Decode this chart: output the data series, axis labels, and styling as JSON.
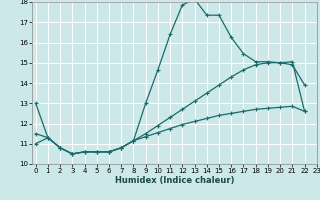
{
  "xlabel": "Humidex (Indice chaleur)",
  "background_color": "#cce8e8",
  "grid_color": "#ffffff",
  "line_color": "#1a6b6b",
  "x_min": 0,
  "x_max": 23,
  "y_min": 10,
  "y_max": 18,
  "series": [
    {
      "x": [
        0,
        1,
        2,
        3,
        4,
        5,
        6,
        7,
        8,
        9,
        10,
        11,
        12,
        13,
        14,
        15,
        16,
        17,
        18,
        19,
        20,
        21,
        22
      ],
      "y": [
        13.0,
        11.3,
        10.8,
        10.5,
        10.6,
        10.6,
        10.6,
        10.8,
        11.15,
        13.0,
        14.65,
        16.4,
        17.85,
        18.15,
        17.35,
        17.35,
        16.25,
        15.45,
        15.05,
        15.05,
        15.0,
        14.9,
        13.9
      ]
    },
    {
      "x": [
        0,
        1,
        2,
        3,
        4,
        5,
        6,
        7,
        8,
        9,
        10,
        11,
        12,
        13,
        14,
        15,
        16,
        17,
        18,
        19,
        20,
        21,
        22
      ],
      "y": [
        11.5,
        11.3,
        10.8,
        10.5,
        10.6,
        10.6,
        10.6,
        10.8,
        11.15,
        11.5,
        11.9,
        12.3,
        12.7,
        13.1,
        13.5,
        13.9,
        14.3,
        14.65,
        14.9,
        15.0,
        15.0,
        15.05,
        12.6
      ]
    },
    {
      "x": [
        0,
        1,
        2,
        3,
        4,
        5,
        6,
        7,
        8,
        9,
        10,
        11,
        12,
        13,
        14,
        15,
        16,
        17,
        18,
        19,
        20,
        21,
        22
      ],
      "y": [
        11.0,
        11.3,
        10.8,
        10.5,
        10.6,
        10.6,
        10.6,
        10.8,
        11.15,
        11.35,
        11.55,
        11.75,
        11.95,
        12.1,
        12.25,
        12.4,
        12.5,
        12.6,
        12.7,
        12.75,
        12.8,
        12.85,
        12.6
      ]
    }
  ]
}
